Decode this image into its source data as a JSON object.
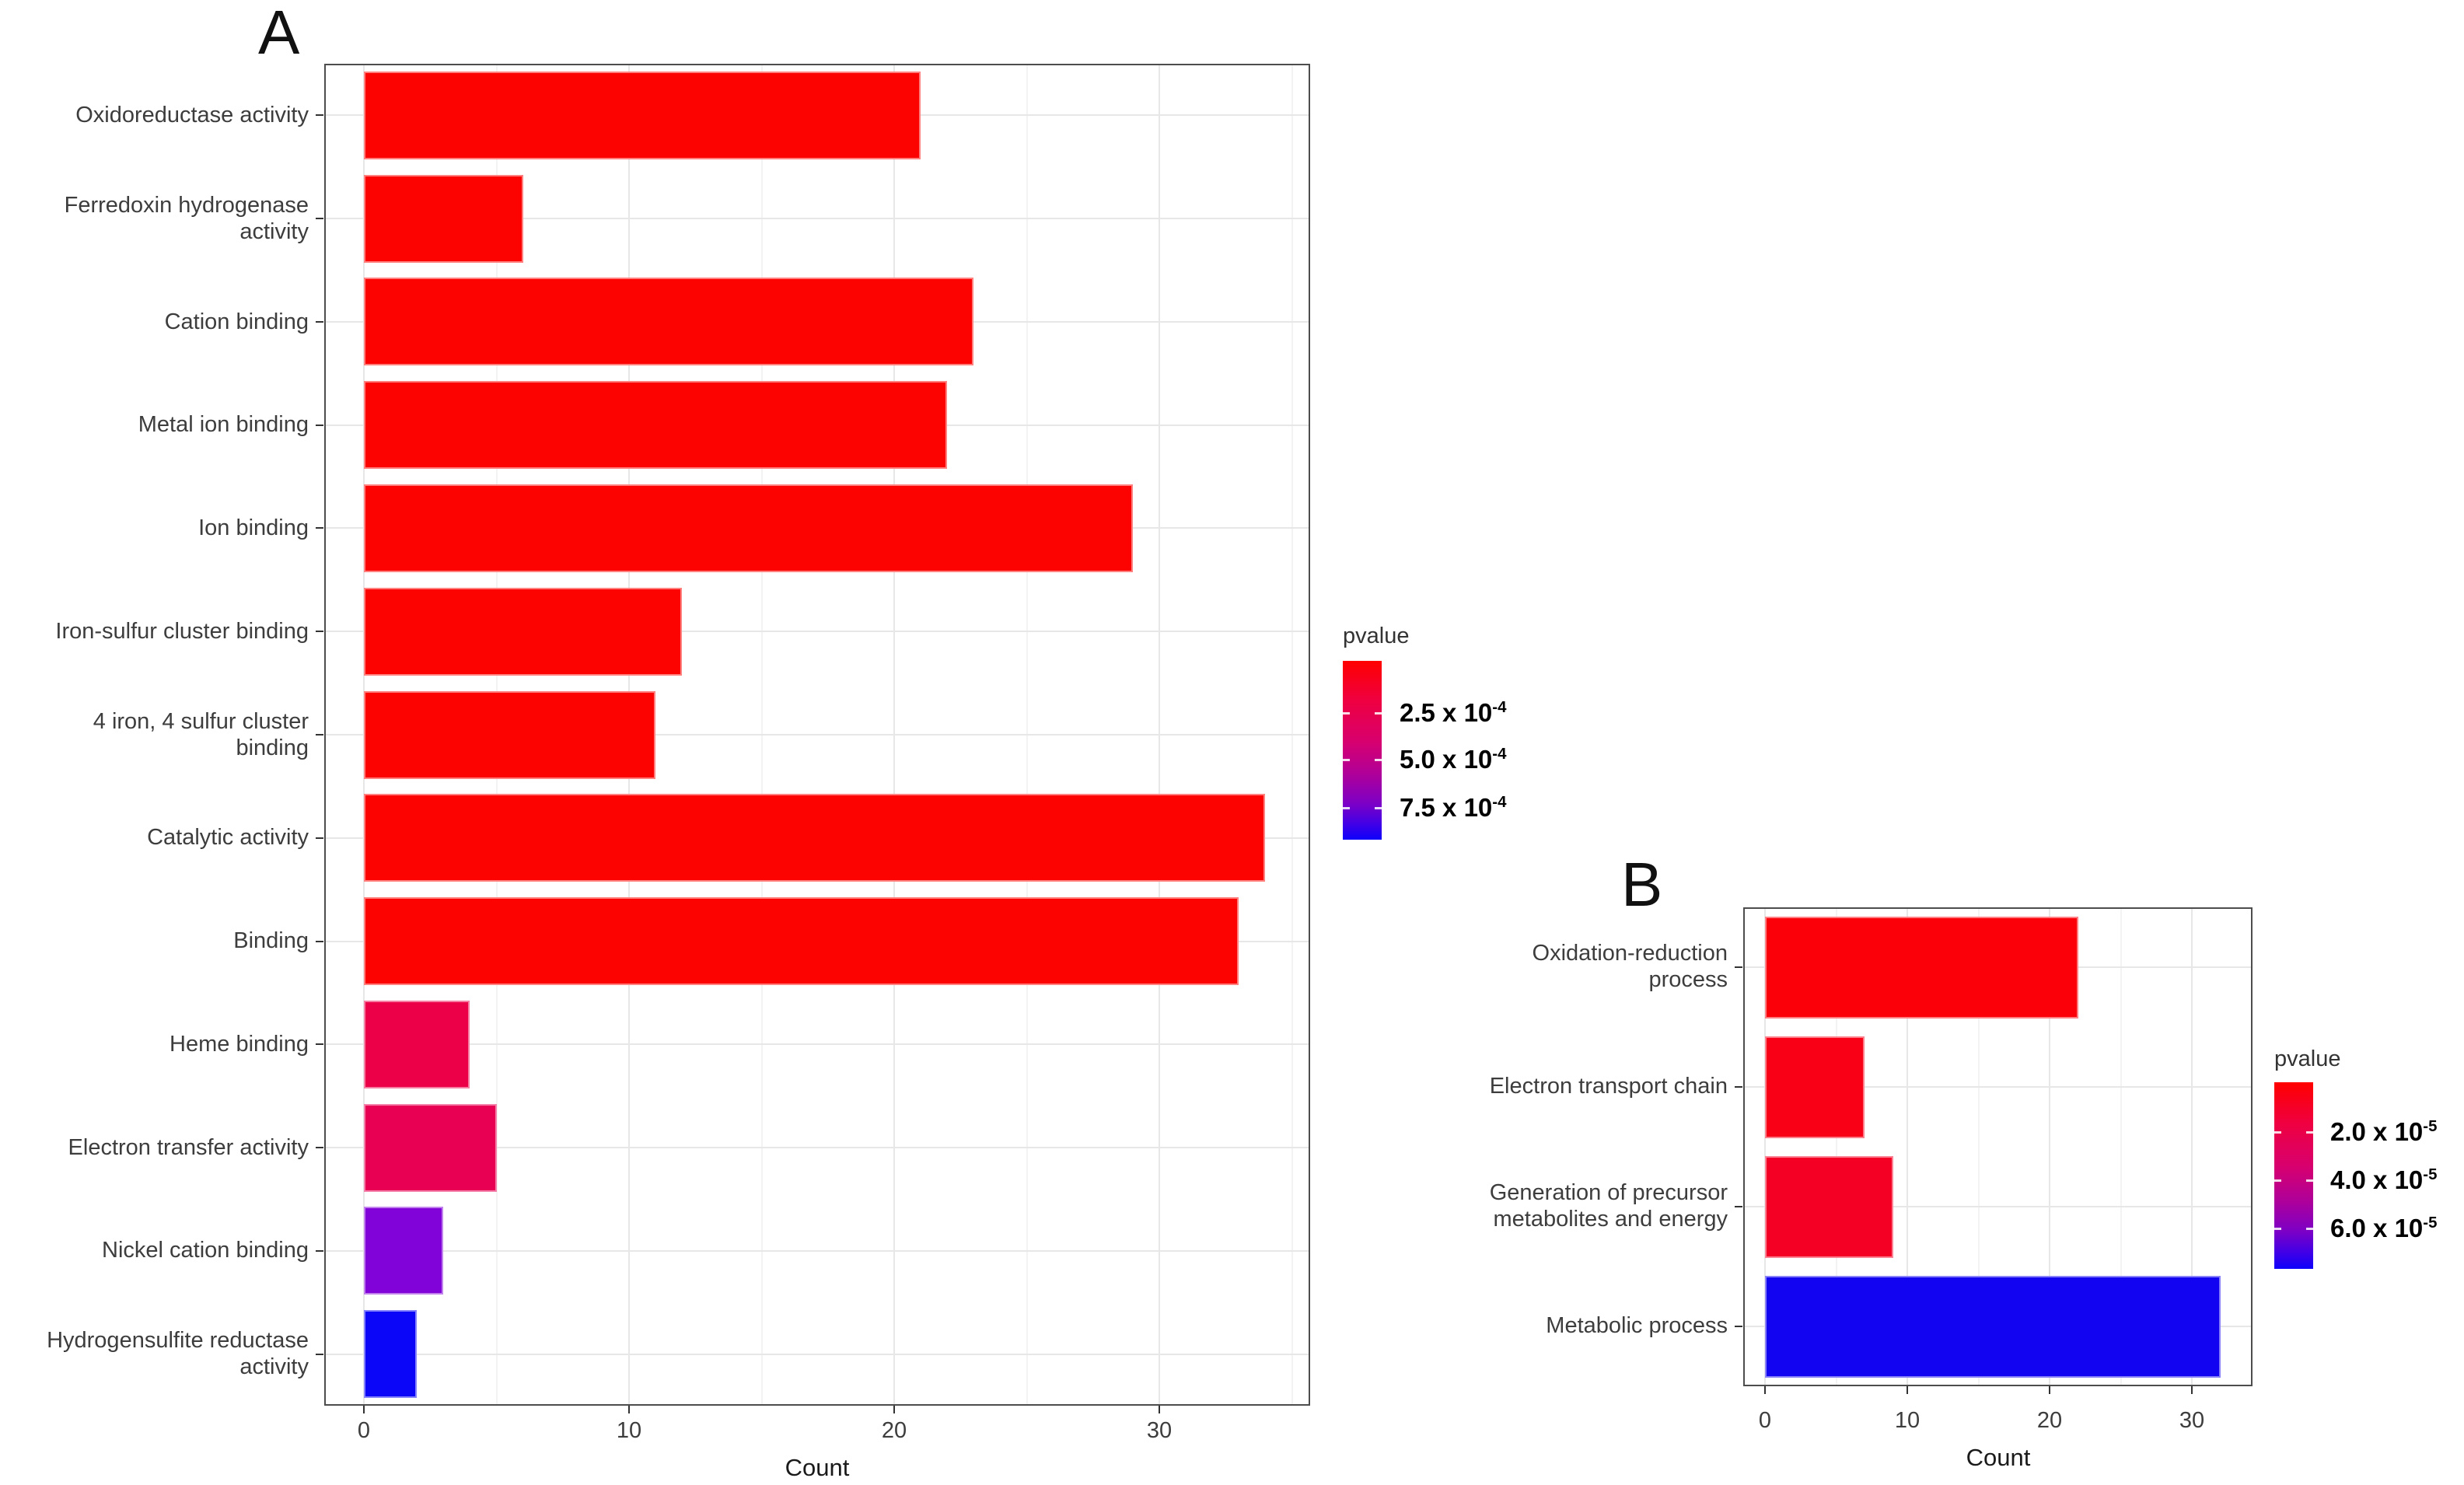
{
  "figure": {
    "background": "#ffffff",
    "panel_labels": [
      "A",
      "B"
    ]
  },
  "chart_data": [
    {
      "type": "bar",
      "orientation": "horizontal",
      "panel_label": "A",
      "xlabel": "Count",
      "x_ticks": [
        0,
        10,
        20,
        30
      ],
      "xlim": [
        0,
        35.7
      ],
      "grid": true,
      "categories": [
        "Oxidoreductase activity",
        "Ferredoxin hydrogenase\nactivity",
        "Cation binding",
        "Metal ion binding",
        "Ion binding",
        "Iron-sulfur cluster binding",
        "4 iron, 4 sulfur cluster\nbinding",
        "Catalytic activity",
        "Binding",
        "Heme binding",
        "Electron transfer activity",
        "Nickel cation binding",
        "Hydrogensulfite reductase\nactivity"
      ],
      "values": [
        21,
        6,
        23,
        22,
        29,
        12,
        11,
        34,
        33,
        4,
        5,
        3,
        2
      ],
      "bar_colors": [
        "#fc0200",
        "#fc0200",
        "#fc0200",
        "#fc0200",
        "#fc0200",
        "#fc0200",
        "#fc0200",
        "#fc0200",
        "#fc0200",
        "#ec0048",
        "#e80053",
        "#8203da",
        "#0b06f8"
      ],
      "colorbar": {
        "title": "pvalue",
        "top_color": "#ff0000",
        "bottom_color": "#0e00fa",
        "ticks": [
          {
            "base": "2.5 x 10",
            "exp": "-4",
            "frac": 0.29
          },
          {
            "base": "5.0 x 10",
            "exp": "-4",
            "frac": 0.55
          },
          {
            "base": "7.5 x 10",
            "exp": "-4",
            "frac": 0.82
          }
        ]
      }
    },
    {
      "type": "bar",
      "orientation": "horizontal",
      "panel_label": "B",
      "xlabel": "Count",
      "x_ticks": [
        0,
        10,
        20,
        30
      ],
      "xlim": [
        0,
        34.3
      ],
      "grid": true,
      "categories": [
        "Oxidation-reduction process",
        "Electron transport chain",
        "Generation of precursor\nmetabolites and energy",
        "Metabolic process"
      ],
      "values": [
        22,
        7,
        9,
        32
      ],
      "bar_colors": [
        "#fb0008",
        "#f90016",
        "#f40024",
        "#1203f0"
      ],
      "colorbar": {
        "title": "pvalue",
        "top_color": "#ff0000",
        "bottom_color": "#0e00fa",
        "ticks": [
          {
            "base": "2.0 x 10",
            "exp": "-5",
            "frac": 0.267
          },
          {
            "base": "4.0 x 10",
            "exp": "-5",
            "frac": 0.525
          },
          {
            "base": "6.0 x 10",
            "exp": "-5",
            "frac": 0.783
          }
        ]
      }
    }
  ]
}
